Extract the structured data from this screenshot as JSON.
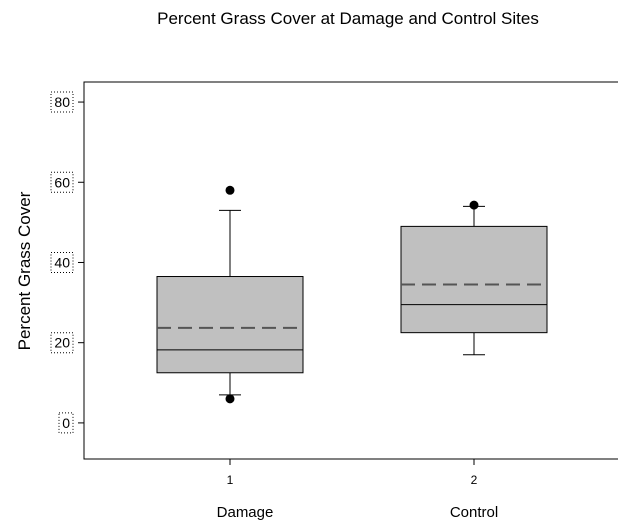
{
  "chart_data": {
    "type": "box",
    "title": "Percent Grass Cover at Damage and Control Sites",
    "ylabel": "Percent Grass Cover",
    "xlabel": "",
    "ylim": [
      -9,
      85
    ],
    "yticks": [
      0,
      20,
      40,
      60,
      80
    ],
    "x_tick_labels": [
      "1",
      "2"
    ],
    "categories": [
      "Damage",
      "Control"
    ],
    "grid": false,
    "legend": "none",
    "box_fill": "#c0c0c0",
    "boxes": [
      {
        "category": "Damage",
        "position": 1,
        "whisker_low": 7,
        "q1": 12.5,
        "median": 18.2,
        "mean": 23.7,
        "q3": 36.5,
        "whisker_high": 53,
        "outliers": [
          6,
          58
        ]
      },
      {
        "category": "Control",
        "position": 2,
        "whisker_low": 17,
        "q1": 22.5,
        "median": 29.5,
        "mean": 34.5,
        "q3": 49,
        "whisker_high": 54,
        "outliers": [
          54.3
        ]
      }
    ]
  }
}
